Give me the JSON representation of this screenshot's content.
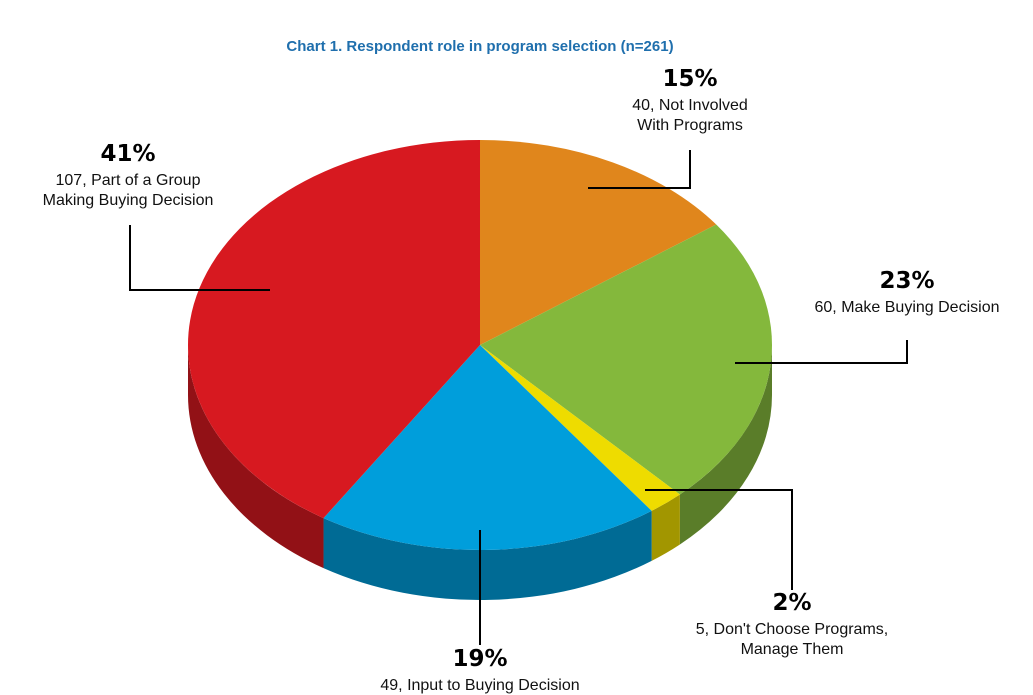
{
  "chart_data": {
    "type": "pie",
    "title": "Chart 1. Respondent role in program selection (n=261)",
    "categories": [
      "40, Not Involved With Programs",
      "60, Make Buying Decision",
      "5, Don't Choose Programs, Manage Them",
      "49, Input to Buying Decision",
      "107, Part of a Group Making Buying Decision"
    ],
    "values": [
      15,
      23,
      2,
      19,
      41
    ],
    "value_labels": [
      "15%",
      "23%",
      "2%",
      "19%",
      "41%"
    ],
    "colors": [
      "#e0861c",
      "#84b83c",
      "#eedc00",
      "#009edb",
      "#d71920"
    ]
  }
}
